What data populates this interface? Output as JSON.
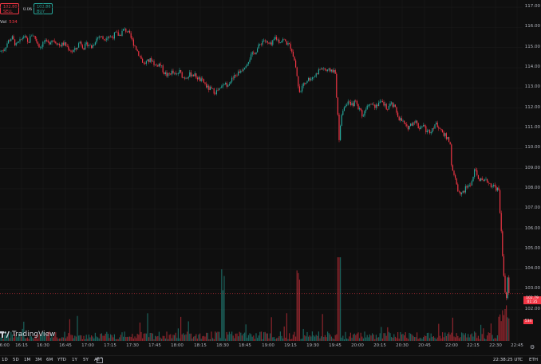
{
  "top": {
    "sell_price": "102.80",
    "sell_label": "SELL",
    "buy_price": "102.86",
    "buy_label": "BUY",
    "spread": "0.06",
    "vol_label": "Vol",
    "vol_value": "534"
  },
  "price_scale": {
    "ticks": [
      "117.00",
      "116.00",
      "115.00",
      "114.00",
      "113.00",
      "112.00",
      "111.00",
      "110.00",
      "109.00",
      "108.00",
      "107.00",
      "106.00",
      "105.00",
      "104.00",
      "103.00",
      "102.00"
    ],
    "last_price": "102.79",
    "countdown": "01:35",
    "volume_tag": "534"
  },
  "time_axis": {
    "ticks": [
      "16:00",
      "16:15",
      "16:30",
      "16:45",
      "17:00",
      "17:15",
      "17:30",
      "17:45",
      "18:00",
      "18:15",
      "18:30",
      "18:45",
      "19:00",
      "19:15",
      "19:30",
      "19:45",
      "20:00",
      "20:15",
      "20:30",
      "20:45",
      "21:00",
      "21:15",
      "21:30",
      "22:00",
      "22:15",
      "22:30",
      "22:45"
    ]
  },
  "brand": {
    "name": "TradingView"
  },
  "bottom_bar": {
    "ranges": [
      "1D",
      "5D",
      "1M",
      "3M",
      "6M",
      "YTD",
      "1Y",
      "5Y",
      "All"
    ],
    "clock": "22:38:25 UTC",
    "session": "ETH"
  },
  "colors": {
    "up": "#26a69a",
    "down": "#f23645",
    "background": "#0f0f0f",
    "grid": "#1b1b1b"
  },
  "chart_data": {
    "type": "candlestick",
    "ylim": [
      101.4,
      117.2
    ],
    "price_path": [
      [
        0,
        114.8
      ],
      [
        5,
        114.9
      ],
      [
        10,
        115.3
      ],
      [
        15,
        115.5
      ],
      [
        20,
        115.1
      ],
      [
        25,
        115.3
      ],
      [
        30,
        115.6
      ],
      [
        35,
        115.2
      ],
      [
        40,
        115.7
      ],
      [
        45,
        115.4
      ],
      [
        50,
        115.0
      ],
      [
        55,
        115.3
      ],
      [
        60,
        115.2
      ],
      [
        65,
        115.4
      ],
      [
        70,
        115.3
      ],
      [
        75,
        115.1
      ],
      [
        80,
        115.2
      ],
      [
        85,
        115.0
      ],
      [
        90,
        114.8
      ],
      [
        95,
        114.9
      ],
      [
        100,
        115.3
      ],
      [
        105,
        115.0
      ],
      [
        110,
        115.2
      ],
      [
        115,
        115.0
      ],
      [
        120,
        115.4
      ],
      [
        125,
        115.6
      ],
      [
        130,
        115.4
      ],
      [
        135,
        115.6
      ],
      [
        140,
        115.5
      ],
      [
        145,
        115.7
      ],
      [
        150,
        115.6
      ],
      [
        155,
        115.9
      ],
      [
        160,
        115.8
      ],
      [
        165,
        115.4
      ],
      [
        170,
        115.0
      ],
      [
        175,
        114.6
      ],
      [
        180,
        114.2
      ],
      [
        185,
        114.3
      ],
      [
        190,
        114.4
      ],
      [
        195,
        114.1
      ],
      [
        200,
        114.2
      ],
      [
        205,
        113.8
      ],
      [
        210,
        113.6
      ],
      [
        215,
        113.8
      ],
      [
        220,
        113.6
      ],
      [
        225,
        113.8
      ],
      [
        230,
        113.5
      ],
      [
        235,
        113.6
      ],
      [
        240,
        113.7
      ],
      [
        245,
        113.6
      ],
      [
        250,
        113.4
      ],
      [
        255,
        113.3
      ],
      [
        260,
        113.0
      ],
      [
        265,
        112.9
      ],
      [
        270,
        112.8
      ],
      [
        275,
        112.9
      ],
      [
        280,
        113.1
      ],
      [
        285,
        113.2
      ],
      [
        290,
        113.4
      ],
      [
        295,
        113.6
      ],
      [
        300,
        113.8
      ],
      [
        305,
        114.0
      ],
      [
        310,
        114.3
      ],
      [
        315,
        114.6
      ],
      [
        320,
        114.8
      ],
      [
        325,
        115.1
      ],
      [
        330,
        115.4
      ],
      [
        335,
        115.2
      ],
      [
        340,
        115.1
      ],
      [
        345,
        115.5
      ],
      [
        350,
        115.3
      ],
      [
        355,
        115.4
      ],
      [
        360,
        115.2
      ],
      [
        365,
        115.0
      ],
      [
        370,
        114.2
      ],
      [
        375,
        112.8
      ],
      [
        380,
        113.1
      ],
      [
        385,
        113.4
      ],
      [
        390,
        113.5
      ],
      [
        395,
        113.6
      ],
      [
        400,
        113.9
      ],
      [
        405,
        114.0
      ],
      [
        410,
        113.8
      ],
      [
        415,
        113.9
      ],
      [
        420,
        113.8
      ],
      [
        422,
        112.5
      ],
      [
        425,
        110.5
      ],
      [
        427,
        111.3
      ],
      [
        430,
        112.0
      ],
      [
        435,
        112.3
      ],
      [
        440,
        112.1
      ],
      [
        445,
        112.3
      ],
      [
        450,
        112.0
      ],
      [
        455,
        111.6
      ],
      [
        460,
        112.2
      ],
      [
        465,
        112.3
      ],
      [
        470,
        112.1
      ],
      [
        475,
        112.3
      ],
      [
        480,
        112.2
      ],
      [
        485,
        112.0
      ],
      [
        490,
        112.2
      ],
      [
        495,
        112.0
      ],
      [
        500,
        111.5
      ],
      [
        505,
        111.3
      ],
      [
        510,
        111.0
      ],
      [
        515,
        111.2
      ],
      [
        520,
        111.4
      ],
      [
        525,
        111.0
      ],
      [
        530,
        111.2
      ],
      [
        535,
        110.8
      ],
      [
        540,
        110.9
      ],
      [
        545,
        111.2
      ],
      [
        550,
        111.1
      ],
      [
        555,
        110.8
      ],
      [
        560,
        110.5
      ],
      [
        565,
        110.2
      ],
      [
        566,
        109.0
      ],
      [
        570,
        108.5
      ],
      [
        575,
        107.8
      ],
      [
        580,
        107.8
      ],
      [
        585,
        108.1
      ],
      [
        590,
        108.2
      ],
      [
        595,
        108.9
      ],
      [
        600,
        108.5
      ],
      [
        605,
        108.3
      ],
      [
        610,
        108.4
      ],
      [
        615,
        108.2
      ],
      [
        620,
        108.1
      ],
      [
        625,
        107.9
      ],
      [
        628,
        106.0
      ],
      [
        630,
        104.5
      ],
      [
        632,
        103.5
      ],
      [
        634,
        102.2
      ],
      [
        636,
        103.6
      ],
      [
        638,
        102.8
      ]
    ]
  }
}
